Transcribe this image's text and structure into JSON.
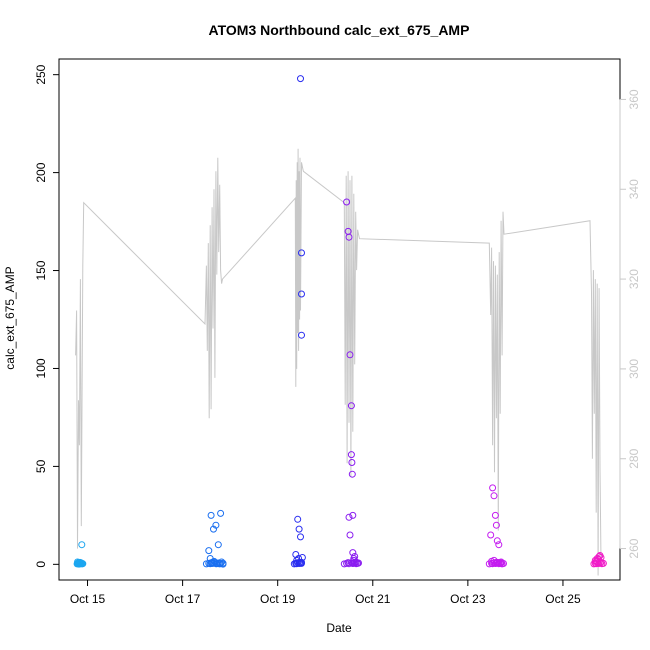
{
  "chart_data": {
    "type": "scatter",
    "title": "ATOM3 Northbound calc_ext_675_AMP",
    "xlabel": "Date",
    "ylabel": "calc_ext_675_AMP",
    "x_ticks": [
      "Oct 15",
      "Oct 17",
      "Oct 19",
      "Oct 21",
      "Oct 23",
      "Oct 25"
    ],
    "x_tick_days": [
      15,
      17,
      19,
      21,
      23,
      25
    ],
    "xlim": [
      14.4,
      26.2
    ],
    "ylim": [
      -8,
      258
    ],
    "y_ticks": [
      0,
      50,
      100,
      150,
      200,
      250
    ],
    "y2lim": [
      253,
      369
    ],
    "y2_ticks": [
      260,
      280,
      300,
      320,
      340,
      360
    ],
    "colors": {
      "axis": "#000000",
      "secondary_axis": "#c8c8c8",
      "line": "#c8c8c8"
    },
    "series": [
      {
        "color": "#1ca6f0",
        "x": [
          14.78,
          14.79,
          14.8,
          14.81,
          14.82,
          14.83,
          14.84,
          14.85,
          14.86,
          14.87,
          14.88,
          14.89,
          14.79,
          14.82,
          14.85,
          14.88,
          14.9
        ],
        "y": [
          0.2,
          0.5,
          0.3,
          0.8,
          0.4,
          0.6,
          1.0,
          0.3,
          0.5,
          0.7,
          0.2,
          0.4,
          1.2,
          0.1,
          0.9,
          10,
          0.3
        ]
      },
      {
        "color": "#1a6ff0",
        "x": [
          17.5,
          17.55,
          17.58,
          17.6,
          17.62,
          17.65,
          17.68,
          17.7,
          17.72,
          17.75,
          17.78,
          17.8,
          17.82,
          17.85,
          17.55,
          17.6,
          17.65,
          17.7,
          17.75,
          17.8,
          17.85,
          17.58,
          17.62,
          17.66,
          17.72
        ],
        "y": [
          0.2,
          0.5,
          0.3,
          0.8,
          0.4,
          0.6,
          1.0,
          0.3,
          0.5,
          0.7,
          0.2,
          0.4,
          1.2,
          0.1,
          7,
          25,
          18,
          20,
          10,
          26,
          0.6,
          3,
          0.9,
          1.5,
          0.3
        ]
      },
      {
        "color": "#2a2ef0",
        "x": [
          19.35,
          19.38,
          19.4,
          19.42,
          19.45,
          19.48,
          19.5,
          19.52,
          19.38,
          19.42,
          19.45,
          19.48,
          19.4,
          19.44,
          19.46,
          19.48,
          19.5,
          19.5,
          19.5,
          19.5
        ],
        "y": [
          0.2,
          0.5,
          0.3,
          0.8,
          0.4,
          0.6,
          1.0,
          3.5,
          5,
          23,
          18,
          14,
          2,
          3,
          1,
          248,
          159,
          138,
          117,
          0.5
        ]
      },
      {
        "color": "#8a1cf0",
        "x": [
          20.4,
          20.45,
          20.5,
          20.55,
          20.58,
          20.6,
          20.62,
          20.65,
          20.68,
          20.7,
          20.45,
          20.48,
          20.5,
          20.52,
          20.5,
          20.52,
          20.55,
          20.55,
          20.56,
          20.57,
          20.58,
          20.6,
          20.62,
          20.58,
          20.65,
          20.6,
          20.48
        ],
        "y": [
          0.2,
          0.5,
          0.3,
          0.8,
          0.4,
          0.6,
          1.0,
          0.3,
          0.5,
          0.7,
          185,
          170,
          167,
          107,
          24,
          15,
          81,
          56,
          52,
          46,
          6,
          3,
          4,
          25,
          1.2,
          2,
          0.9
        ]
      },
      {
        "color": "#c41cf0",
        "x": [
          23.45,
          23.5,
          23.52,
          23.55,
          23.58,
          23.6,
          23.62,
          23.65,
          23.68,
          23.7,
          23.72,
          23.75,
          23.48,
          23.52,
          23.55,
          23.58,
          23.6,
          23.62,
          23.65,
          23.5,
          23.55,
          23.6,
          23.65,
          23.7
        ],
        "y": [
          0.2,
          0.5,
          0.3,
          0.8,
          0.4,
          0.6,
          1.0,
          0.3,
          0.5,
          0.7,
          0.2,
          0.4,
          15,
          39,
          35,
          25,
          20,
          12,
          10,
          1.5,
          2,
          1,
          0.8,
          1.2
        ]
      },
      {
        "color": "#f01cc8",
        "x": [
          25.65,
          25.68,
          25.7,
          25.72,
          25.75,
          25.78,
          25.8,
          25.82,
          25.85,
          25.68,
          25.72,
          25.76,
          25.8,
          25.7,
          25.75,
          25.78
        ],
        "y": [
          0.2,
          0.5,
          0.3,
          0.8,
          0.4,
          0.6,
          1.0,
          0.3,
          0.5,
          2,
          3,
          4,
          3.5,
          1.5,
          2.5,
          4.5
        ]
      }
    ],
    "line_series": {
      "axis": "secondary",
      "x": [
        14.75,
        14.77,
        14.79,
        14.81,
        14.83,
        14.85,
        14.87,
        14.9,
        14.92,
        17.47,
        17.5,
        17.52,
        17.54,
        17.56,
        17.58,
        17.6,
        17.62,
        17.64,
        17.66,
        17.68,
        17.7,
        17.72,
        17.74,
        17.76,
        17.78,
        17.8,
        17.82,
        17.84,
        19.37,
        19.38,
        19.39,
        19.4,
        19.41,
        19.42,
        19.43,
        19.44,
        19.45,
        19.46,
        19.47,
        19.48,
        19.5,
        19.52,
        19.54,
        20.4,
        20.42,
        20.44,
        20.46,
        20.48,
        20.5,
        20.52,
        20.54,
        20.56,
        20.58,
        20.6,
        20.62,
        20.64,
        20.66,
        20.68,
        20.7,
        20.72,
        23.45,
        23.48,
        23.5,
        23.52,
        23.54,
        23.56,
        23.58,
        23.6,
        23.62,
        23.64,
        23.66,
        23.68,
        23.7,
        23.72,
        23.74,
        23.76,
        25.57,
        25.6,
        25.62,
        25.64,
        25.66,
        25.68,
        25.7,
        25.72,
        25.74,
        25.76,
        25.78,
        25.8
      ],
      "y": [
        303,
        313,
        260,
        293,
        283,
        320,
        265,
        323,
        337,
        310,
        323,
        304,
        328,
        289,
        332,
        291,
        336,
        309,
        340,
        298,
        344,
        321,
        347,
        326,
        341,
        322,
        319,
        320,
        338,
        296,
        342,
        300,
        346,
        308,
        349,
        304,
        344,
        311,
        347,
        313,
        346,
        345,
        344,
        337,
        292,
        343,
        279,
        344,
        288,
        342,
        276,
        343,
        286,
        339,
        301,
        335,
        322,
        331,
        330,
        329,
        328,
        312,
        327,
        283,
        324,
        277,
        323,
        289,
        321,
        264,
        326,
        290,
        333,
        303,
        335,
        330,
        333,
        317,
        280,
        322,
        290,
        320,
        268,
        319,
        254,
        318,
        278,
        257
      ]
    }
  }
}
